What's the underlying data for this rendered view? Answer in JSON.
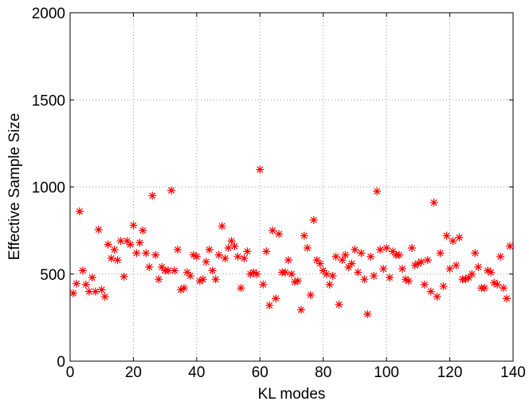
{
  "chart_data": {
    "type": "scatter",
    "xlabel": "KL modes",
    "ylabel": "Effective Sample Size",
    "xlim": [
      0,
      140
    ],
    "xticks": [
      0,
      20,
      40,
      60,
      80,
      100,
      120,
      140
    ],
    "ylim": [
      0,
      2000
    ],
    "yticks": [
      0,
      500,
      1000,
      1500,
      2000
    ],
    "grid": true,
    "color": "#ff0000",
    "marker": "asterisk",
    "x": [
      1,
      2,
      3,
      4,
      5,
      6,
      7,
      8,
      9,
      10,
      11,
      12,
      13,
      14,
      15,
      16,
      17,
      18,
      19,
      20,
      21,
      22,
      23,
      24,
      25,
      26,
      27,
      28,
      29,
      30,
      31,
      32,
      33,
      34,
      35,
      36,
      37,
      38,
      39,
      40,
      41,
      42,
      43,
      44,
      45,
      46,
      47,
      48,
      49,
      50,
      51,
      52,
      53,
      54,
      55,
      56,
      57,
      58,
      59,
      60,
      61,
      62,
      63,
      64,
      65,
      66,
      67,
      68,
      69,
      70,
      71,
      72,
      73,
      74,
      75,
      76,
      77,
      78,
      79,
      80,
      81,
      82,
      83,
      84,
      85,
      86,
      87,
      88,
      89,
      90,
      91,
      92,
      93,
      94,
      95,
      96,
      97,
      98,
      99,
      100,
      101,
      102,
      103,
      104,
      105,
      106,
      107,
      108,
      109,
      110,
      111,
      112,
      113,
      114,
      115,
      116,
      117,
      118,
      119,
      120,
      121,
      122,
      123,
      124,
      125,
      126,
      127,
      128,
      129,
      130,
      131,
      132,
      133,
      134,
      135,
      136,
      137,
      138,
      139
    ],
    "values": [
      390,
      445,
      860,
      520,
      440,
      400,
      480,
      400,
      755,
      410,
      370,
      670,
      590,
      640,
      580,
      690,
      485,
      690,
      670,
      780,
      620,
      680,
      750,
      620,
      540,
      950,
      610,
      470,
      540,
      520,
      520,
      980,
      520,
      640,
      410,
      420,
      510,
      490,
      610,
      600,
      460,
      470,
      570,
      640,
      520,
      470,
      610,
      775,
      590,
      650,
      690,
      660,
      600,
      420,
      590,
      630,
      500,
      510,
      500,
      1100,
      440,
      630,
      320,
      750,
      360,
      730,
      510,
      510,
      580,
      500,
      455,
      460,
      295,
      720,
      650,
      380,
      810,
      580,
      560,
      520,
      500,
      440,
      490,
      600,
      325,
      580,
      610,
      540,
      560,
      640,
      510,
      620,
      470,
      270,
      600,
      490,
      975,
      640,
      530,
      650,
      480,
      630,
      610,
      610,
      530,
      470,
      460,
      650,
      550,
      560,
      570,
      440,
      580,
      400,
      910,
      370,
      620,
      430,
      720,
      530,
      690,
      550,
      710,
      470,
      470,
      480,
      500,
      620,
      540,
      420,
      420,
      520,
      510,
      450,
      440,
      600,
      420,
      360,
      660
    ]
  }
}
